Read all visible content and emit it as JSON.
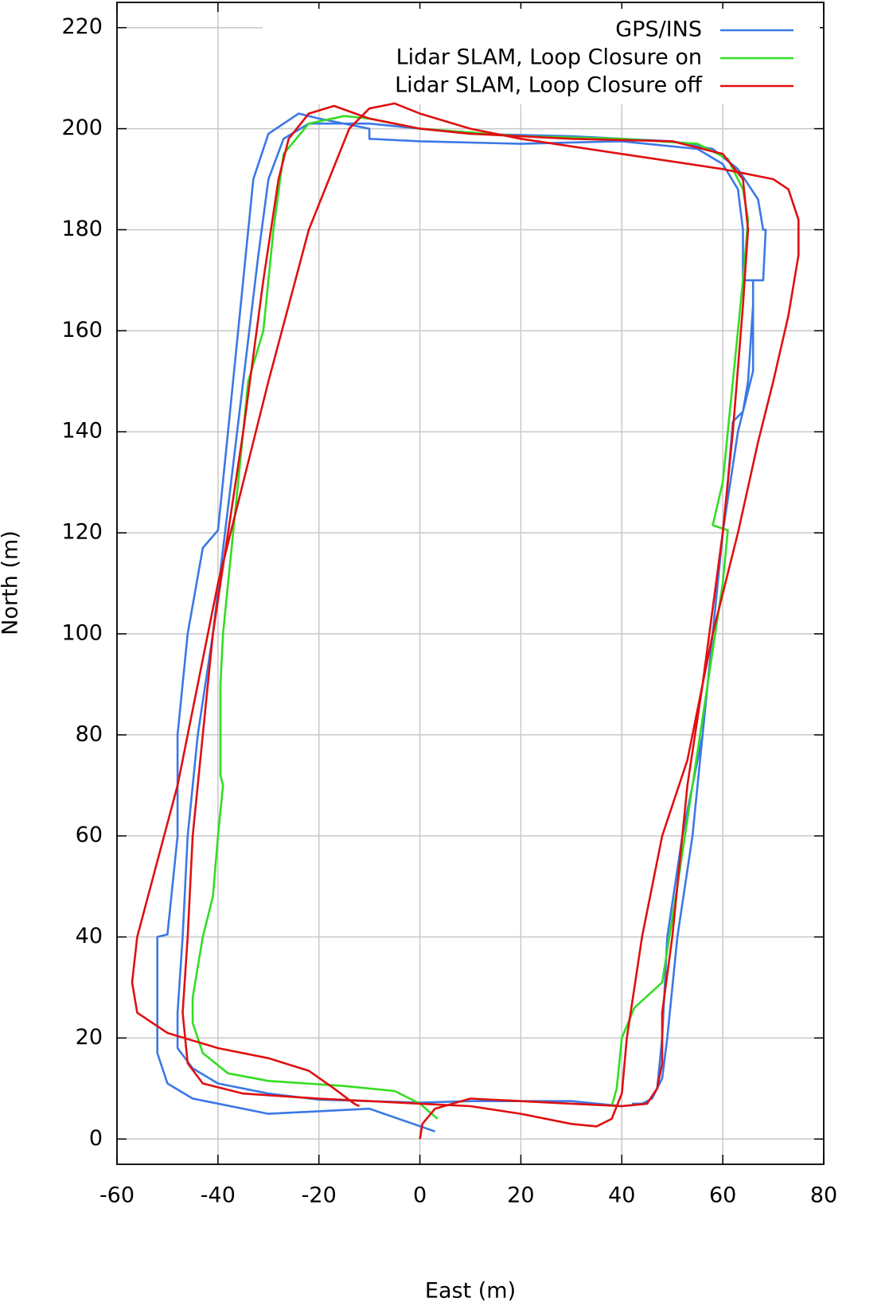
{
  "chart_data": {
    "type": "line",
    "x_label": "East (m)",
    "y_label": "North (m)",
    "xlim": [
      -60,
      80
    ],
    "ylim": [
      -5,
      225
    ],
    "xticks": [
      -60,
      -40,
      -20,
      0,
      20,
      40,
      60,
      80
    ],
    "yticks": [
      0,
      20,
      40,
      60,
      80,
      100,
      120,
      140,
      160,
      180,
      200,
      220
    ],
    "grid": true,
    "legend": "top-right",
    "series": [
      {
        "name": "GPS/INS",
        "color": "#3b78e7",
        "x": [
          3,
          -10,
          -30,
          -45,
          -50,
          -52,
          -52,
          -50,
          -48,
          -48,
          -46,
          -43,
          -40,
          -38,
          -35,
          -33,
          -30,
          -24,
          -20,
          -10,
          -10,
          0,
          20,
          40,
          55,
          60,
          63,
          64,
          64,
          66,
          66,
          65,
          64,
          62,
          61,
          59,
          56,
          52,
          49,
          48,
          47,
          45,
          40,
          30,
          20,
          10,
          0,
          -10,
          -20,
          -30,
          -40,
          -45,
          -48,
          -48,
          -47,
          -46,
          -44,
          -41,
          -38,
          -35,
          -32,
          -30,
          -27,
          -22,
          -10,
          10,
          30,
          50,
          58,
          63,
          67,
          68,
          68.5,
          68,
          66,
          66,
          66,
          64,
          63,
          60,
          57,
          54,
          51,
          49,
          48,
          46,
          44,
          42
        ],
        "y": [
          1.5,
          6,
          5,
          8,
          11,
          17,
          40,
          40.5,
          60,
          80,
          100,
          117,
          120.5,
          140,
          170,
          190,
          199,
          203,
          202,
          200,
          198,
          197.5,
          197,
          197.5,
          196,
          193,
          188,
          180,
          170,
          170,
          165,
          150,
          144,
          142,
          130,
          110,
          80,
          60,
          40,
          20,
          10,
          7,
          6.5,
          7.5,
          7.5,
          7.5,
          7.2,
          7.5,
          7.8,
          9,
          11,
          14,
          18,
          25,
          40,
          60,
          80,
          100,
          125,
          150,
          175,
          190,
          198,
          201,
          201,
          199,
          198.5,
          197.5,
          196,
          192,
          186,
          180,
          180,
          170,
          170,
          160,
          152,
          144,
          140,
          120,
          90,
          60,
          40,
          20,
          12,
          8,
          7,
          7
        ]
      },
      {
        "name": "Lidar SLAM, Loop Closure on",
        "color": "#33dd22",
        "x": [
          3.5,
          0,
          -5,
          -15,
          -30,
          -38,
          -43,
          -45,
          -45,
          -43,
          -41,
          -40,
          -39,
          -39.5,
          -39.5,
          -39,
          -37,
          -34,
          -31,
          -29,
          -27,
          -22,
          -15,
          -10,
          0,
          20,
          40,
          55,
          61,
          64,
          65,
          64,
          63,
          60,
          58,
          61,
          60,
          57,
          54,
          51,
          48,
          42.5,
          40,
          39,
          38
        ],
        "y": [
          4,
          7,
          9.5,
          10.5,
          11.5,
          13,
          17,
          23,
          28,
          40,
          48,
          60,
          70,
          72,
          90,
          100,
          120,
          150,
          160,
          180,
          195,
          201,
          202.5,
          202,
          200,
          198.5,
          198,
          197,
          194,
          188,
          182,
          170,
          160,
          130,
          121.5,
          120.5,
          110,
          90,
          70,
          50,
          31,
          26,
          20,
          10,
          6.5
        ]
      },
      {
        "name": "Lidar SLAM, Loop Closure off",
        "color": "#e01010",
        "x": [
          0,
          0.5,
          3,
          10,
          20,
          30,
          40,
          45,
          47,
          48,
          48,
          50,
          53,
          56,
          60,
          62,
          64,
          65,
          64,
          60,
          50,
          30,
          10,
          0,
          -10,
          -17,
          -22,
          -26,
          -28,
          -31,
          -35,
          -38,
          -41,
          -43,
          -45,
          -46,
          -47,
          -46,
          -43,
          -35,
          -20,
          -10,
          0,
          10,
          20,
          30,
          35,
          38,
          40,
          41,
          44,
          48,
          53,
          58,
          63,
          67,
          70,
          73,
          75,
          75,
          73,
          70,
          60,
          40,
          20,
          10,
          0,
          -5,
          -10,
          -14,
          -18,
          -22,
          -26,
          -30,
          -35,
          -40,
          -44,
          -48,
          -52,
          -56,
          -57,
          -56,
          -50,
          -40,
          -30,
          -22,
          -17,
          -13,
          -12
        ],
        "y": [
          0,
          3,
          6,
          8,
          7.5,
          7,
          6.5,
          7,
          10,
          15,
          25,
          40,
          70,
          90,
          120,
          140,
          165,
          180,
          190,
          195,
          197.5,
          198,
          199,
          200,
          202,
          204.5,
          203,
          198,
          190,
          170,
          140,
          120,
          100,
          80,
          60,
          40,
          25,
          15,
          11,
          9,
          8,
          7.5,
          7,
          6.5,
          5,
          3,
          2.5,
          4,
          9,
          20,
          40,
          60,
          75,
          100,
          120,
          138,
          150,
          163,
          175,
          182,
          188,
          190,
          192,
          195,
          198,
          200,
          203,
          205,
          204,
          200,
          190,
          180,
          165,
          150,
          130,
          110,
          90,
          70,
          55,
          40,
          31,
          25,
          21,
          18,
          16,
          13.5,
          10,
          7,
          6.5
        ]
      }
    ]
  }
}
